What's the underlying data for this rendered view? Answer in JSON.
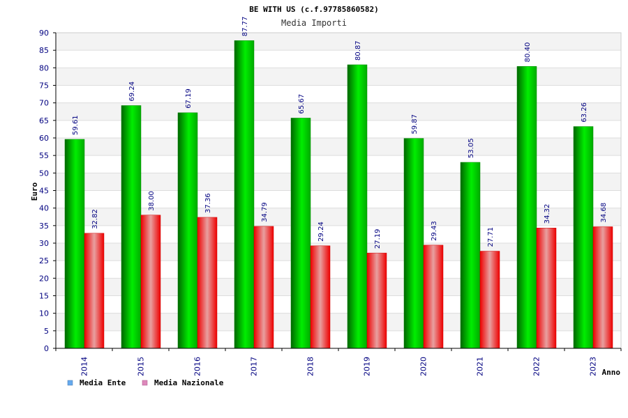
{
  "chart_data": {
    "type": "bar",
    "title": "BE WITH US (c.f.97785860582)",
    "subtitle": "Media Importi",
    "xlabel": "Anno",
    "ylabel": "Euro",
    "ylim": [
      0,
      90
    ],
    "ystep": 5,
    "grid": true,
    "legend_position": "bottom-left",
    "categories": [
      "2014",
      "2015",
      "2016",
      "2017",
      "2018",
      "2019",
      "2020",
      "2021",
      "2022",
      "2023"
    ],
    "series": [
      {
        "name": "Media Ente",
        "legend_color": "#66aaee",
        "color_dark": "#006600",
        "color_light": "#00ee00",
        "values": [
          59.61,
          69.24,
          67.19,
          87.77,
          65.67,
          80.87,
          59.87,
          53.05,
          80.4,
          63.26
        ],
        "labels": [
          "59.61",
          "69.24",
          "67.19",
          "87.77",
          "65.67",
          "80.87",
          "59.87",
          "53.05",
          "80.40",
          "63.26"
        ]
      },
      {
        "name": "Media Nazionale",
        "legend_color": "#dd88bb",
        "color_dark": "#ee0000",
        "color_light": "#e8a0a0",
        "values": [
          32.82,
          38.0,
          37.36,
          34.79,
          29.24,
          27.19,
          29.43,
          27.71,
          34.32,
          34.68
        ],
        "labels": [
          "32.82",
          "38.00",
          "37.36",
          "34.79",
          "29.24",
          "27.19",
          "29.43",
          "27.71",
          "34.32",
          "34.68"
        ]
      }
    ]
  }
}
